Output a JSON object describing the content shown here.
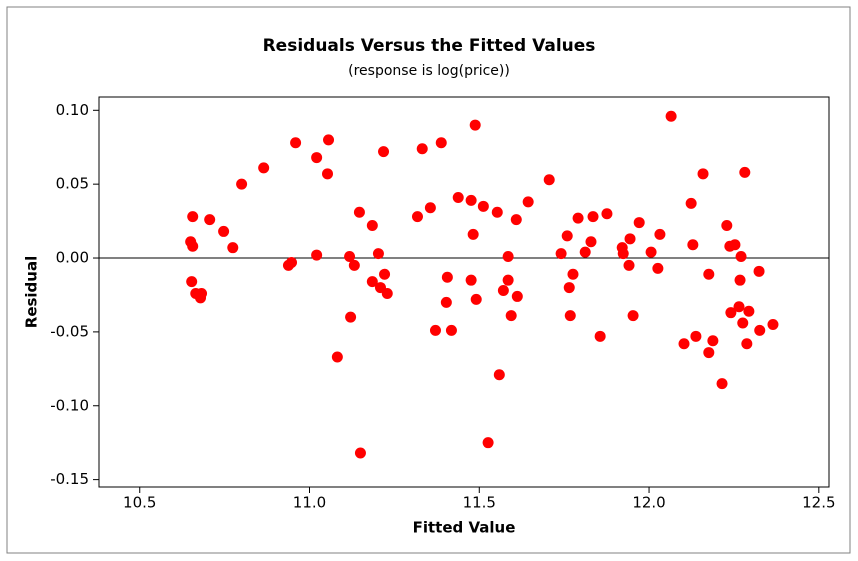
{
  "chart_data": {
    "type": "scatter",
    "title": "Residuals Versus the Fitted Values",
    "subtitle": "(response is log(price))",
    "x_label": "Fitted Value",
    "y_label": "Residual",
    "color": "#ff0000",
    "xlim": [
      10.38,
      12.53
    ],
    "ylim": [
      -0.155,
      0.109
    ],
    "xticks": [
      {
        "value": 10.5,
        "label": "10.5"
      },
      {
        "value": 11,
        "label": "11.0"
      },
      {
        "value": 11.5,
        "label": "11.5"
      },
      {
        "value": 12,
        "label": "12.0"
      },
      {
        "value": 12.5,
        "label": "12.5"
      }
    ],
    "yticks": [
      {
        "value": 0.1,
        "label": "0.10"
      },
      0.05,
      {
        "value": 0,
        "label": "0.00"
      },
      -0.05,
      {
        "value": -0.1,
        "label": "-0.10"
      },
      -0.15
    ],
    "reference_line": 0,
    "x": [
      10.656,
      10.65,
      10.656,
      10.653,
      10.665,
      10.679,
      10.682,
      10.706,
      10.747,
      10.774,
      10.8,
      10.865,
      10.938,
      10.947,
      10.959,
      11.021,
      11.021,
      11.056,
      11.053,
      11.082,
      11.118,
      11.121,
      11.132,
      11.147,
      11.15,
      11.185,
      11.185,
      11.203,
      11.209,
      11.218,
      11.221,
      11.229,
      11.318,
      11.332,
      11.356,
      11.371,
      11.388,
      11.406,
      11.403,
      11.418,
      11.438,
      11.476,
      11.476,
      11.482,
      11.488,
      11.491,
      11.512,
      11.526,
      11.553,
      11.559,
      11.571,
      11.585,
      11.585,
      11.594,
      11.609,
      11.612,
      11.644,
      11.706,
      11.741,
      11.759,
      11.765,
      11.768,
      11.776,
      11.791,
      11.812,
      11.829,
      11.835,
      11.856,
      11.876,
      11.921,
      11.924,
      11.941,
      11.944,
      11.953,
      11.971,
      12.006,
      12.026,
      12.032,
      12.065,
      12.103,
      12.124,
      12.129,
      12.138,
      12.159,
      12.176,
      12.176,
      12.188,
      12.215,
      12.229,
      12.238,
      12.241,
      12.253,
      12.265,
      12.268,
      12.271,
      12.276,
      12.282,
      12.288,
      12.294,
      12.324,
      12.326,
      12.365
    ],
    "values": [
      0.028,
      0.011,
      0.008,
      -0.016,
      -0.024,
      -0.027,
      -0.024,
      0.026,
      0.018,
      0.007,
      0.05,
      0.061,
      -0.005,
      -0.003,
      0.078,
      0.068,
      0.002,
      0.08,
      0.057,
      -0.067,
      0.001,
      -0.04,
      -0.005,
      0.031,
      -0.132,
      0.022,
      -0.016,
      0.003,
      -0.02,
      0.072,
      -0.011,
      -0.024,
      0.028,
      0.074,
      0.034,
      -0.049,
      0.078,
      -0.013,
      -0.03,
      -0.049,
      0.041,
      0.039,
      -0.015,
      0.016,
      0.09,
      -0.028,
      0.035,
      -0.125,
      0.031,
      -0.079,
      -0.022,
      0.001,
      -0.015,
      -0.039,
      0.026,
      -0.026,
      0.038,
      0.053,
      0.003,
      0.015,
      -0.02,
      -0.039,
      -0.011,
      0.027,
      0.004,
      0.011,
      0.028,
      -0.053,
      0.03,
      0.007,
      0.003,
      -0.005,
      0.013,
      -0.039,
      0.024,
      0.004,
      -0.007,
      0.016,
      0.096,
      -0.058,
      0.037,
      0.009,
      -0.053,
      0.057,
      -0.011,
      -0.064,
      -0.056,
      -0.085,
      0.022,
      0.008,
      -0.037,
      0.009,
      -0.033,
      -0.015,
      0.001,
      -0.044,
      0.058,
      -0.058,
      -0.036,
      -0.009,
      -0.049,
      -0.045
    ]
  }
}
